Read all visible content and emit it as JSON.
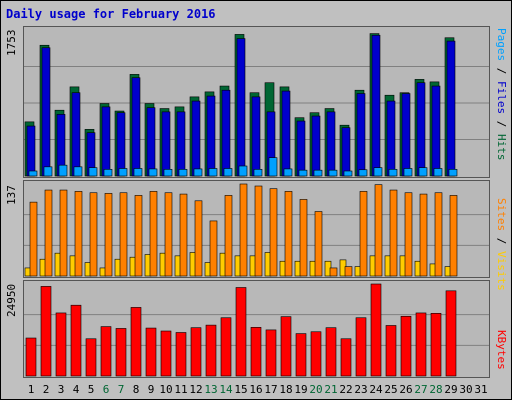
{
  "title": "Daily usage for February 2016",
  "colors": {
    "pages": "#00a0ff",
    "files": "#0000cc",
    "hits": "#006633",
    "sites": "#ff8000",
    "visits": "#ffcc00",
    "kbytes": "#ff0000",
    "weekend_day": "#006633"
  },
  "right_labels": {
    "top": [
      {
        "text": "Pages",
        "color": "#00a0ff"
      },
      {
        "text": " / ",
        "color": "#000000"
      },
      {
        "text": "Files",
        "color": "#0000cc"
      },
      {
        "text": " / ",
        "color": "#000000"
      },
      {
        "text": "Hits",
        "color": "#006633"
      }
    ],
    "middle": [
      {
        "text": "Sites",
        "color": "#ff8000"
      },
      {
        "text": " / ",
        "color": "#000000"
      },
      {
        "text": "Visits",
        "color": "#ffcc00"
      }
    ],
    "bottom": [
      {
        "text": "KBytes",
        "color": "#ff0000"
      }
    ]
  },
  "chart_data": [
    {
      "type": "bar",
      "title": "Daily usage for February 2016",
      "y_max_label": "1753",
      "ylim": [
        0,
        1753
      ],
      "categories": [
        "1",
        "2",
        "3",
        "4",
        "5",
        "6",
        "7",
        "8",
        "9",
        "10",
        "11",
        "12",
        "13",
        "14",
        "15",
        "16",
        "17",
        "18",
        "19",
        "20",
        "21",
        "22",
        "23",
        "24",
        "25",
        "26",
        "27",
        "28",
        "29",
        "30",
        "31"
      ],
      "weekend_days": [
        "6",
        "7",
        "13",
        "14",
        "20",
        "21",
        "27",
        "28"
      ],
      "grid": true,
      "series": [
        {
          "name": "Hits",
          "values": [
            650,
            1570,
            790,
            1070,
            560,
            870,
            780,
            1220,
            870,
            810,
            830,
            950,
            1010,
            1080,
            1700,
            1000,
            1120,
            1070,
            700,
            760,
            810,
            610,
            1030,
            1710,
            970,
            1000,
            1160,
            1130,
            1660,
            0,
            0
          ]
        },
        {
          "name": "Files",
          "values": [
            600,
            1540,
            740,
            1000,
            520,
            830,
            760,
            1180,
            820,
            770,
            770,
            900,
            960,
            1030,
            1650,
            950,
            770,
            1020,
            660,
            720,
            770,
            580,
            990,
            1690,
            900,
            990,
            1120,
            1080,
            1620,
            0,
            0
          ]
        },
        {
          "name": "Pages",
          "values": [
            60,
            110,
            130,
            110,
            100,
            80,
            90,
            90,
            85,
            80,
            80,
            85,
            90,
            90,
            120,
            80,
            220,
            85,
            70,
            70,
            70,
            60,
            75,
            100,
            80,
            90,
            100,
            90,
            80,
            0,
            0
          ]
        }
      ]
    },
    {
      "type": "bar",
      "y_max_label": "137",
      "ylim": [
        0,
        137
      ],
      "categories": [
        "1",
        "2",
        "3",
        "4",
        "5",
        "6",
        "7",
        "8",
        "9",
        "10",
        "11",
        "12",
        "13",
        "14",
        "15",
        "16",
        "17",
        "18",
        "19",
        "20",
        "21",
        "22",
        "23",
        "24",
        "25",
        "26",
        "27",
        "28",
        "29",
        "30",
        "31"
      ],
      "grid": true,
      "series": [
        {
          "name": "Sites",
          "values": [
            110,
            128,
            128,
            126,
            124,
            123,
            124,
            120,
            126,
            124,
            122,
            112,
            82,
            120,
            137,
            134,
            130,
            126,
            114,
            96,
            12,
            14,
            126,
            136,
            128,
            124,
            122,
            124,
            120,
            0,
            0
          ]
        },
        {
          "name": "Visits",
          "values": [
            12,
            25,
            34,
            30,
            20,
            12,
            25,
            28,
            32,
            34,
            30,
            35,
            20,
            34,
            30,
            30,
            35,
            22,
            22,
            22,
            22,
            24,
            14,
            30,
            30,
            30,
            22,
            18,
            14,
            0,
            0
          ]
        }
      ]
    },
    {
      "type": "bar",
      "y_max_label": "24950",
      "ylim": [
        0,
        24950
      ],
      "categories": [
        "1",
        "2",
        "3",
        "4",
        "5",
        "6",
        "7",
        "8",
        "9",
        "10",
        "11",
        "12",
        "13",
        "14",
        "15",
        "16",
        "17",
        "18",
        "19",
        "20",
        "21",
        "22",
        "23",
        "24",
        "25",
        "26",
        "27",
        "28",
        "29",
        "30",
        "31"
      ],
      "grid": true,
      "series": [
        {
          "name": "KBytes",
          "values": [
            10300,
            24300,
            17100,
            19200,
            10100,
            13400,
            12900,
            18600,
            13000,
            12200,
            11800,
            13100,
            13800,
            15800,
            24000,
            13200,
            12500,
            16100,
            11500,
            12000,
            13100,
            10100,
            15800,
            24950,
            13700,
            16200,
            17100,
            17000,
            23100,
            0,
            0
          ]
        }
      ]
    }
  ]
}
